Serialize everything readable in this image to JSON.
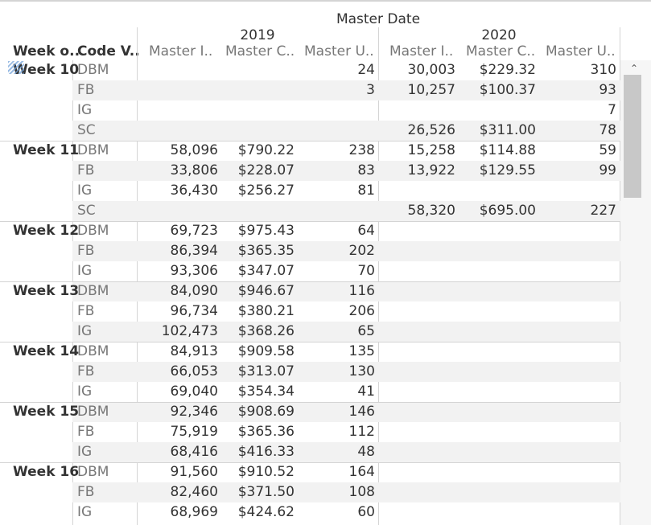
{
  "header": {
    "title": "Master Date",
    "years": [
      "2019",
      "2020"
    ],
    "dim_columns": [
      "Week o..",
      "Code V.."
    ],
    "measure_columns": [
      "Master I..",
      "Master C..",
      "Master U.."
    ]
  },
  "rows": [
    {
      "week": "Week 10",
      "code": "DBM",
      "y2019": [
        "",
        "",
        "24"
      ],
      "y2020": [
        "30,003",
        "$229.32",
        "310"
      ]
    },
    {
      "week": "",
      "code": "FB",
      "y2019": [
        "",
        "",
        "3"
      ],
      "y2020": [
        "10,257",
        "$100.37",
        "93"
      ]
    },
    {
      "week": "",
      "code": "IG",
      "y2019": [
        "",
        "",
        ""
      ],
      "y2020": [
        "",
        "",
        "7"
      ]
    },
    {
      "week": "",
      "code": "SC",
      "y2019": [
        "",
        "",
        ""
      ],
      "y2020": [
        "26,526",
        "$311.00",
        "78"
      ]
    },
    {
      "week": "Week 11",
      "code": "DBM",
      "y2019": [
        "58,096",
        "$790.22",
        "238"
      ],
      "y2020": [
        "15,258",
        "$114.88",
        "59"
      ]
    },
    {
      "week": "",
      "code": "FB",
      "y2019": [
        "33,806",
        "$228.07",
        "83"
      ],
      "y2020": [
        "13,922",
        "$129.55",
        "99"
      ]
    },
    {
      "week": "",
      "code": "IG",
      "y2019": [
        "36,430",
        "$256.27",
        "81"
      ],
      "y2020": [
        "",
        "",
        ""
      ]
    },
    {
      "week": "",
      "code": "SC",
      "y2019": [
        "",
        "",
        ""
      ],
      "y2020": [
        "58,320",
        "$695.00",
        "227"
      ]
    },
    {
      "week": "Week 12",
      "code": "DBM",
      "y2019": [
        "69,723",
        "$975.43",
        "64"
      ],
      "y2020": [
        "",
        "",
        ""
      ]
    },
    {
      "week": "",
      "code": "FB",
      "y2019": [
        "86,394",
        "$365.35",
        "202"
      ],
      "y2020": [
        "",
        "",
        ""
      ]
    },
    {
      "week": "",
      "code": "IG",
      "y2019": [
        "93,306",
        "$347.07",
        "70"
      ],
      "y2020": [
        "",
        "",
        ""
      ]
    },
    {
      "week": "Week 13",
      "code": "DBM",
      "y2019": [
        "84,090",
        "$946.67",
        "116"
      ],
      "y2020": [
        "",
        "",
        ""
      ]
    },
    {
      "week": "",
      "code": "FB",
      "y2019": [
        "96,734",
        "$380.21",
        "206"
      ],
      "y2020": [
        "",
        "",
        ""
      ]
    },
    {
      "week": "",
      "code": "IG",
      "y2019": [
        "102,473",
        "$368.26",
        "65"
      ],
      "y2020": [
        "",
        "",
        ""
      ]
    },
    {
      "week": "Week 14",
      "code": "DBM",
      "y2019": [
        "84,913",
        "$909.58",
        "135"
      ],
      "y2020": [
        "",
        "",
        ""
      ]
    },
    {
      "week": "",
      "code": "FB",
      "y2019": [
        "66,053",
        "$313.07",
        "130"
      ],
      "y2020": [
        "",
        "",
        ""
      ]
    },
    {
      "week": "",
      "code": "IG",
      "y2019": [
        "69,040",
        "$354.34",
        "41"
      ],
      "y2020": [
        "",
        "",
        ""
      ]
    },
    {
      "week": "Week 15",
      "code": "DBM",
      "y2019": [
        "92,346",
        "$908.69",
        "146"
      ],
      "y2020": [
        "",
        "",
        ""
      ]
    },
    {
      "week": "",
      "code": "FB",
      "y2019": [
        "75,919",
        "$365.36",
        "112"
      ],
      "y2020": [
        "",
        "",
        ""
      ]
    },
    {
      "week": "",
      "code": "IG",
      "y2019": [
        "68,416",
        "$416.33",
        "48"
      ],
      "y2020": [
        "",
        "",
        ""
      ]
    },
    {
      "week": "Week 16",
      "code": "DBM",
      "y2019": [
        "91,560",
        "$910.52",
        "164"
      ],
      "y2020": [
        "",
        "",
        ""
      ]
    },
    {
      "week": "",
      "code": "FB",
      "y2019": [
        "82,460",
        "$371.50",
        "108"
      ],
      "y2020": [
        "",
        "",
        ""
      ]
    },
    {
      "week": "",
      "code": "IG",
      "y2019": [
        "68,969",
        "$424.62",
        "60"
      ],
      "y2020": [
        "",
        "",
        ""
      ]
    }
  ],
  "scrollbar": {
    "up_icon": "chevron-up-icon"
  }
}
